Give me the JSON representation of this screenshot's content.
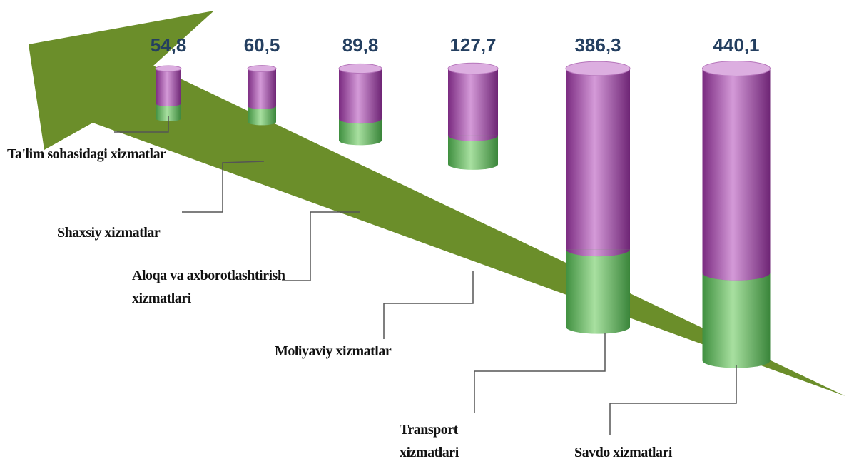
{
  "chart_data": {
    "type": "cylinder",
    "categories": [
      "Ta'lim sohasidagi xizmatlar",
      "Shaxsiy xizmatlar",
      "Aloqa va axborotlashtirish xizmatlari",
      "Moliyaviy xizmatlar",
      "Transport xizmatlari",
      "Savdo xizmatlari"
    ],
    "values": [
      54.8,
      60.5,
      89.8,
      127.7,
      386.3,
      440.1
    ],
    "value_labels": [
      "54,8",
      "60,5",
      "89,8",
      "127,7",
      "386,3",
      "440,1"
    ],
    "color": "#9b3fa0"
  }
}
